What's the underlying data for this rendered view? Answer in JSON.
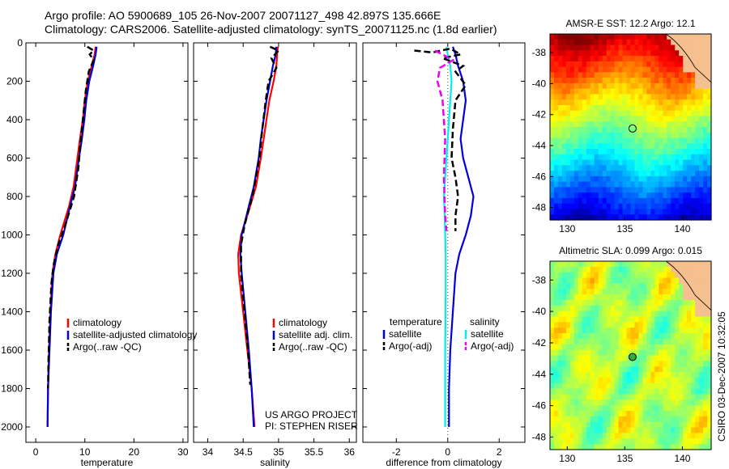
{
  "header": {
    "line1": "Argo profile: AO 5900689_105 26-Nov-2007 20071127_498 42.897S 135.666E",
    "line2": "Climatology: CARS2006. Satellite-adjusted climatology: synTS_20071125.nc (1.8d earlier)"
  },
  "side_text": "CSIRO 03-Dec-2007 10:32:05",
  "colors": {
    "climatology": "#ff0000",
    "satellite": "#0000dd",
    "argo": "#000000",
    "sat_salinity": "#00eeee",
    "argo_salinity": "#ee00ee",
    "land": "#f5bf90"
  },
  "panels": {
    "temperature": {
      "xlabel": "temperature",
      "legend": [
        "climatology",
        "satellite-adjusted climatology",
        "Argo(..raw -QC)"
      ]
    },
    "salinity": {
      "xlabel": "salinity",
      "legend": [
        "climatology",
        "satellite adj. clim.",
        "Argo(..raw -QC)"
      ],
      "credit": [
        "US ARGO PROJECT",
        "PI: STEPHEN RISER"
      ]
    },
    "difference": {
      "xlabel": "difference from climatology",
      "legend_headers": [
        "temperature",
        "salinity"
      ],
      "legend_left": [
        "satellite",
        "Argo(-adj)"
      ],
      "legend_right": [
        "satellite",
        "Argo(-adj)"
      ]
    },
    "sst_map": {
      "title": "AMSR-E SST: 12.2 Argo: 12.1"
    },
    "sla_map": {
      "title": "Altimetric SLA: 0.099 Argo: 0.015"
    }
  },
  "chart_data": [
    {
      "type": "line",
      "name": "temperature profile",
      "xlabel": "temperature",
      "xlim": [
        -2,
        31
      ],
      "ylim": [
        2080,
        0
      ],
      "xticks": [
        0,
        10,
        20,
        30
      ],
      "yticks": [
        0,
        200,
        400,
        600,
        800,
        1000,
        1200,
        1400,
        1600,
        1800,
        2000
      ],
      "series": [
        {
          "name": "climatology",
          "style": "solid",
          "color": "#ff0000",
          "points": [
            [
              12.2,
              20
            ],
            [
              12.0,
              60
            ],
            [
              11.4,
              120
            ],
            [
              10.6,
              200
            ],
            [
              10.0,
              300
            ],
            [
              9.6,
              400
            ],
            [
              9.0,
              500
            ],
            [
              8.5,
              600
            ],
            [
              7.7,
              750
            ],
            [
              6.8,
              850
            ],
            [
              5.0,
              1000
            ],
            [
              4.0,
              1100
            ],
            [
              3.4,
              1200
            ],
            [
              3.0,
              1400
            ],
            [
              2.7,
              1600
            ],
            [
              2.5,
              1800
            ],
            [
              2.4,
              2000
            ]
          ]
        },
        {
          "name": "satellite-adjusted climatology",
          "style": "solid",
          "color": "#0000dd",
          "points": [
            [
              12.4,
              20
            ],
            [
              12.2,
              60
            ],
            [
              11.7,
              120
            ],
            [
              10.9,
              200
            ],
            [
              10.3,
              300
            ],
            [
              9.9,
              400
            ],
            [
              9.4,
              500
            ],
            [
              8.8,
              600
            ],
            [
              8.0,
              750
            ],
            [
              7.0,
              850
            ],
            [
              5.6,
              1000
            ],
            [
              4.3,
              1100
            ],
            [
              3.6,
              1200
            ],
            [
              3.1,
              1400
            ],
            [
              2.8,
              1600
            ],
            [
              2.5,
              1800
            ],
            [
              2.4,
              2000
            ]
          ]
        },
        {
          "name": "Argo(..raw -QC)",
          "style": "dashed",
          "color": "#000000",
          "points": [
            [
              10.5,
              20
            ],
            [
              11.8,
              40
            ],
            [
              11.0,
              60
            ],
            [
              11.8,
              90
            ],
            [
              10.8,
              150
            ],
            [
              10.2,
              250
            ],
            [
              9.8,
              350
            ],
            [
              9.4,
              450
            ],
            [
              9.0,
              550
            ],
            [
              8.7,
              650
            ],
            [
              7.8,
              800
            ],
            [
              6.0,
              950
            ],
            [
              4.6,
              1050
            ],
            [
              3.7,
              1150
            ],
            [
              3.2,
              1250
            ],
            [
              2.8,
              1450
            ],
            [
              2.6,
              1650
            ],
            [
              2.5,
              1800
            ]
          ]
        }
      ]
    },
    {
      "type": "line",
      "name": "salinity profile",
      "xlabel": "salinity",
      "xlim": [
        33.8,
        36.1
      ],
      "ylim": [
        2080,
        0
      ],
      "xticks": [
        34,
        34.5,
        35,
        35.5,
        36
      ],
      "series": [
        {
          "name": "climatology",
          "style": "solid",
          "color": "#ff0000",
          "points": [
            [
              34.99,
              20
            ],
            [
              34.98,
              60
            ],
            [
              34.97,
              120
            ],
            [
              34.93,
              200
            ],
            [
              34.87,
              300
            ],
            [
              34.83,
              400
            ],
            [
              34.79,
              500
            ],
            [
              34.75,
              600
            ],
            [
              34.68,
              750
            ],
            [
              34.6,
              850
            ],
            [
              34.47,
              1000
            ],
            [
              34.43,
              1100
            ],
            [
              34.44,
              1200
            ],
            [
              34.5,
              1400
            ],
            [
              34.56,
              1600
            ],
            [
              34.62,
              1800
            ],
            [
              34.66,
              2000
            ]
          ]
        },
        {
          "name": "satellite adj. clim.",
          "style": "solid",
          "color": "#0000dd",
          "points": [
            [
              34.97,
              20
            ],
            [
              34.96,
              60
            ],
            [
              34.92,
              120
            ],
            [
              34.88,
              200
            ],
            [
              34.83,
              300
            ],
            [
              34.79,
              400
            ],
            [
              34.75,
              500
            ],
            [
              34.72,
              600
            ],
            [
              34.65,
              750
            ],
            [
              34.58,
              850
            ],
            [
              34.48,
              1000
            ],
            [
              34.46,
              1100
            ],
            [
              34.48,
              1200
            ],
            [
              34.53,
              1400
            ],
            [
              34.58,
              1600
            ],
            [
              34.62,
              1800
            ],
            [
              34.65,
              2000
            ]
          ]
        },
        {
          "name": "Argo(..raw -QC)",
          "style": "dashed",
          "color": "#000000",
          "points": [
            [
              34.88,
              20
            ],
            [
              35.0,
              40
            ],
            [
              34.9,
              80
            ],
            [
              34.97,
              130
            ],
            [
              34.86,
              200
            ],
            [
              34.82,
              300
            ],
            [
              34.77,
              450
            ],
            [
              34.73,
              600
            ],
            [
              34.63,
              800
            ],
            [
              34.52,
              950
            ],
            [
              34.47,
              1050
            ],
            [
              34.47,
              1200
            ],
            [
              34.52,
              1400
            ],
            [
              34.57,
              1600
            ],
            [
              34.6,
              1780
            ]
          ]
        }
      ]
    },
    {
      "type": "line",
      "name": "difference from climatology",
      "xlabel": "difference from climatology",
      "xlim": [
        -3.3,
        3.0
      ],
      "ylim": [
        2080,
        0
      ],
      "xticks": [
        -2,
        0,
        2
      ],
      "series": [
        {
          "name": "temperature satellite",
          "style": "solid",
          "color": "#0000dd",
          "points": [
            [
              0.2,
              20
            ],
            [
              0.3,
              60
            ],
            [
              0.4,
              120
            ],
            [
              0.6,
              200
            ],
            [
              0.7,
              300
            ],
            [
              0.6,
              400
            ],
            [
              0.5,
              500
            ],
            [
              0.6,
              600
            ],
            [
              0.8,
              700
            ],
            [
              1.0,
              800
            ],
            [
              0.9,
              900
            ],
            [
              0.7,
              1000
            ],
            [
              0.45,
              1100
            ],
            [
              0.3,
              1200
            ],
            [
              0.2,
              1400
            ],
            [
              0.1,
              1600
            ],
            [
              0.05,
              1800
            ],
            [
              0.05,
              2000
            ]
          ]
        },
        {
          "name": "salinity satellite",
          "style": "solid",
          "color": "#00eeee",
          "points": [
            [
              -0.05,
              20
            ],
            [
              0.0,
              60
            ],
            [
              0.1,
              120
            ],
            [
              0.15,
              200
            ],
            [
              0.1,
              300
            ],
            [
              0.05,
              400
            ],
            [
              0.0,
              500
            ],
            [
              -0.05,
              600
            ],
            [
              -0.1,
              700
            ],
            [
              -0.15,
              800
            ],
            [
              -0.12,
              900
            ],
            [
              -0.1,
              1000
            ],
            [
              -0.08,
              1100
            ],
            [
              -0.08,
              1300
            ],
            [
              -0.1,
              1600
            ],
            [
              -0.1,
              1800
            ],
            [
              -0.1,
              2000
            ]
          ]
        },
        {
          "name": "temperature Argo(-adj)",
          "style": "dashed",
          "color": "#000000",
          "points": [
            [
              -1.3,
              40
            ],
            [
              -0.6,
              50
            ],
            [
              0.1,
              30
            ],
            [
              0.5,
              60
            ],
            [
              -0.2,
              80
            ],
            [
              0.6,
              120
            ],
            [
              0.3,
              150
            ],
            [
              0.7,
              220
            ],
            [
              0.3,
              300
            ],
            [
              0.2,
              450
            ],
            [
              0.15,
              600
            ],
            [
              0.3,
              700
            ],
            [
              0.4,
              800
            ],
            [
              0.3,
              900
            ],
            [
              0.3,
              980
            ]
          ]
        },
        {
          "name": "salinity Argo(-adj)",
          "style": "dashed",
          "color": "#ee00ee",
          "points": [
            [
              -0.5,
              40
            ],
            [
              -0.2,
              60
            ],
            [
              0.2,
              90
            ],
            [
              -0.3,
              130
            ],
            [
              -0.4,
              200
            ],
            [
              -0.2,
              300
            ],
            [
              -0.1,
              500
            ],
            [
              -0.15,
              700
            ],
            [
              -0.1,
              900
            ],
            [
              -0.05,
              980
            ]
          ]
        }
      ]
    },
    {
      "type": "heatmap",
      "name": "AMSR-E SST map",
      "title": "AMSR-E SST: 12.2 Argo: 12.1",
      "xlim": [
        128.5,
        142.5
      ],
      "ylim": [
        -48.8,
        -36.8
      ],
      "xticks": [
        130,
        135,
        140
      ],
      "yticks": [
        -38,
        -40,
        -42,
        -44,
        -46,
        -48
      ],
      "marker": [
        135.67,
        -42.9
      ],
      "colormap": "jet",
      "description_levels": [
        "red-brown north",
        "orange",
        "yellow-green",
        "green",
        "cyan",
        "blue south"
      ]
    },
    {
      "type": "heatmap",
      "name": "Altimetric SLA map",
      "title": "Altimetric SLA: 0.099 Argo: 0.015",
      "xlim": [
        128.5,
        142.5
      ],
      "ylim": [
        -48.8,
        -36.8
      ],
      "xticks": [
        130,
        135,
        140
      ],
      "yticks": [
        -38,
        -40,
        -42,
        -44,
        -46,
        -48
      ],
      "marker": [
        135.67,
        -42.9
      ],
      "colormap": "jet"
    }
  ]
}
